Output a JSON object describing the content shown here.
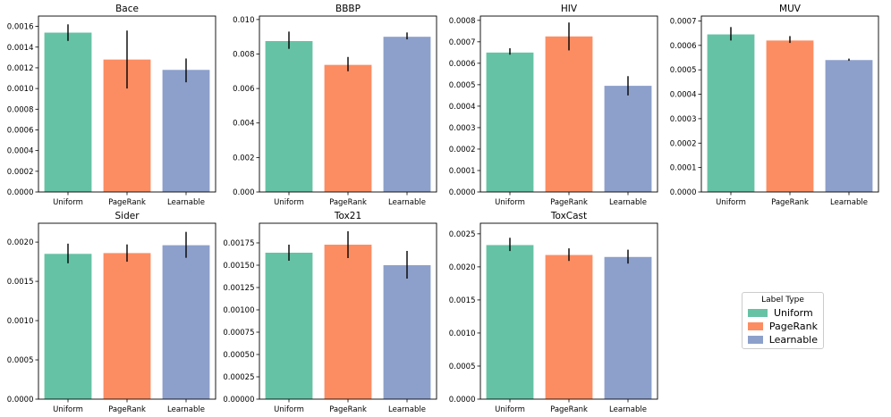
{
  "figure": {
    "legend_title": "Label Type"
  },
  "labels": [
    "Uniform",
    "PageRank",
    "Learnable"
  ],
  "colors": [
    "#66c2a5",
    "#fc8d62",
    "#8da0cb"
  ],
  "chart_data": [
    {
      "type": "bar",
      "title": "Bace",
      "categories": [
        "Uniform",
        "PageRank",
        "Learnable"
      ],
      "values": [
        0.00154,
        0.00128,
        0.00118
      ],
      "error_low": [
        0.00146,
        0.001,
        0.00106
      ],
      "error_high": [
        0.00162,
        0.00156,
        0.00129
      ],
      "ylim": [
        0,
        0.0017
      ],
      "yticks": [
        "0.0000",
        "0.0002",
        "0.0004",
        "0.0006",
        "0.0008",
        "0.0010",
        "0.0012",
        "0.0014",
        "0.0016"
      ]
    },
    {
      "type": "bar",
      "title": "BBBP",
      "categories": [
        "Uniform",
        "PageRank",
        "Learnable"
      ],
      "values": [
        0.00875,
        0.00737,
        0.009
      ],
      "error_low": [
        0.0083,
        0.007,
        0.00885
      ],
      "error_high": [
        0.0093,
        0.00783,
        0.00925
      ],
      "ylim": [
        0,
        0.0102
      ],
      "yticks": [
        "0.000",
        "0.002",
        "0.004",
        "0.006",
        "0.008",
        "0.010"
      ]
    },
    {
      "type": "bar",
      "title": "HIV",
      "categories": [
        "Uniform",
        "PageRank",
        "Learnable"
      ],
      "values": [
        0.00065,
        0.000725,
        0.000495
      ],
      "error_low": [
        0.00064,
        0.00066,
        0.00045
      ],
      "error_high": [
        0.00067,
        0.00079,
        0.00054
      ],
      "ylim": [
        0,
        0.00082
      ],
      "yticks": [
        "0.0000",
        "0.0001",
        "0.0002",
        "0.0003",
        "0.0004",
        "0.0005",
        "0.0006",
        "0.0007",
        "0.0008"
      ]
    },
    {
      "type": "bar",
      "title": "MUV",
      "categories": [
        "Uniform",
        "PageRank",
        "Learnable"
      ],
      "values": [
        0.000645,
        0.00062,
        0.00054
      ],
      "error_low": [
        0.00062,
        0.00061,
        0.000537
      ],
      "error_high": [
        0.000675,
        0.000638,
        0.000546
      ],
      "ylim": [
        0,
        0.00072
      ],
      "yticks": [
        "0.0000",
        "0.0001",
        "0.0002",
        "0.0003",
        "0.0004",
        "0.0005",
        "0.0006",
        "0.0007"
      ]
    },
    {
      "type": "bar",
      "title": "Sider",
      "categories": [
        "Uniform",
        "PageRank",
        "Learnable"
      ],
      "values": [
        0.00185,
        0.00186,
        0.00196
      ],
      "error_low": [
        0.00173,
        0.00175,
        0.0018
      ],
      "error_high": [
        0.00198,
        0.00197,
        0.00213
      ],
      "ylim": [
        0,
        0.00224
      ],
      "yticks": [
        "0.0000",
        "0.0005",
        "0.0010",
        "0.0015",
        "0.0020"
      ]
    },
    {
      "type": "bar",
      "title": "Tox21",
      "categories": [
        "Uniform",
        "PageRank",
        "Learnable"
      ],
      "values": [
        0.00164,
        0.00173,
        0.0015
      ],
      "error_low": [
        0.00155,
        0.00158,
        0.00135
      ],
      "error_high": [
        0.00173,
        0.00188,
        0.00166
      ],
      "ylim": [
        0,
        0.00197
      ],
      "yticks": [
        "0.00000",
        "0.00025",
        "0.00050",
        "0.00075",
        "0.00100",
        "0.00125",
        "0.00150",
        "0.00175"
      ]
    },
    {
      "type": "bar",
      "title": "ToxCast",
      "categories": [
        "Uniform",
        "PageRank",
        "Learnable"
      ],
      "values": [
        0.00233,
        0.00218,
        0.00215
      ],
      "error_low": [
        0.00224,
        0.00209,
        0.00205
      ],
      "error_high": [
        0.00244,
        0.00228,
        0.00226
      ],
      "ylim": [
        0,
        0.00266
      ],
      "yticks": [
        "0.0000",
        "0.0005",
        "0.0010",
        "0.0015",
        "0.0020",
        "0.0025"
      ]
    }
  ]
}
